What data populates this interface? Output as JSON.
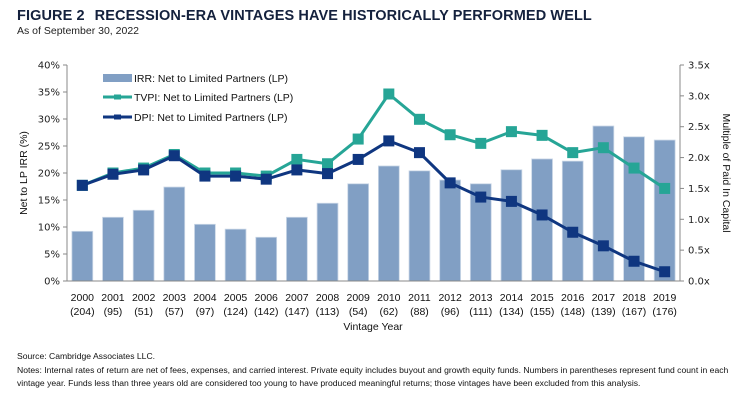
{
  "figure": {
    "number": "FIGURE 2",
    "title": "RECESSION-ERA VINTAGES HAVE HISTORICALLY PERFORMED WELL",
    "subtitle": "As of September 30, 2022"
  },
  "chart_data": {
    "type": "bar",
    "title": "RECESSION-ERA VINTAGES HAVE HISTORICALLY PERFORMED WELL",
    "xlabel": "Vintage Year",
    "ylabel": "Net to LP IRR (%)",
    "y2label": "Multiple of Paid In Capital",
    "categories": [
      "2000",
      "2001",
      "2002",
      "2003",
      "2004",
      "2005",
      "2006",
      "2007",
      "2008",
      "2009",
      "2010",
      "2011",
      "2012",
      "2013",
      "2014",
      "2015",
      "2016",
      "2017",
      "2018",
      "2019"
    ],
    "fund_counts": [
      "(204)",
      "(95)",
      "(51)",
      "(57)",
      "(97)",
      "(124)",
      "(142)",
      "(147)",
      "(113)",
      "(54)",
      "(62)",
      "(88)",
      "(96)",
      "(111)",
      "(134)",
      "(155)",
      "(148)",
      "(139)",
      "(167)",
      "(176)"
    ],
    "ylim": [
      0,
      40
    ],
    "yticks": [
      "0%",
      "5%",
      "10%",
      "15%",
      "20%",
      "25%",
      "30%",
      "35%",
      "40%"
    ],
    "y2lim": [
      0,
      3.5
    ],
    "y2ticks": [
      "0.0x",
      "0.5x",
      "1.0x",
      "1.5x",
      "2.0x",
      "2.5x",
      "3.0x",
      "3.5x"
    ],
    "grid": false,
    "legend_position": "top-left",
    "series": [
      {
        "name": "IRR: Net to Limited Partners (LP)",
        "type": "bar",
        "axis": "left",
        "color": "#819fc4",
        "values": [
          9.2,
          11.8,
          13.1,
          17.4,
          10.5,
          9.6,
          8.1,
          11.8,
          14.4,
          18.0,
          21.3,
          20.4,
          18.7,
          18.0,
          20.6,
          22.6,
          22.2,
          28.7,
          26.7,
          26.1
        ]
      },
      {
        "name": "TVPI: Net to Limited Partners (LP)",
        "type": "line",
        "axis": "right",
        "color": "#26a596",
        "values": [
          1.55,
          1.75,
          1.83,
          2.05,
          1.75,
          1.75,
          1.7,
          1.97,
          1.9,
          2.3,
          3.03,
          2.62,
          2.37,
          2.23,
          2.42,
          2.36,
          2.08,
          2.16,
          1.83,
          1.5
        ]
      },
      {
        "name": "DPI: Net to Limited Partners (LP)",
        "type": "line",
        "axis": "right",
        "color": "#0f3680",
        "values": [
          1.55,
          1.73,
          1.8,
          2.03,
          1.7,
          1.7,
          1.65,
          1.8,
          1.74,
          1.97,
          2.27,
          2.08,
          1.59,
          1.36,
          1.29,
          1.07,
          0.79,
          0.57,
          0.32,
          0.15
        ]
      }
    ]
  },
  "footer": {
    "source": "Source: Cambridge Associates LLC.",
    "notes": "Notes: Internal rates of return are net of fees, expenses, and carried interest. Private equity includes buyout and growth equity funds. Numbers in parentheses represent fund count in each vintage year. Funds less than three years old are considered too young to have produced meaningful returns; those vintages have been excluded from this analysis."
  }
}
